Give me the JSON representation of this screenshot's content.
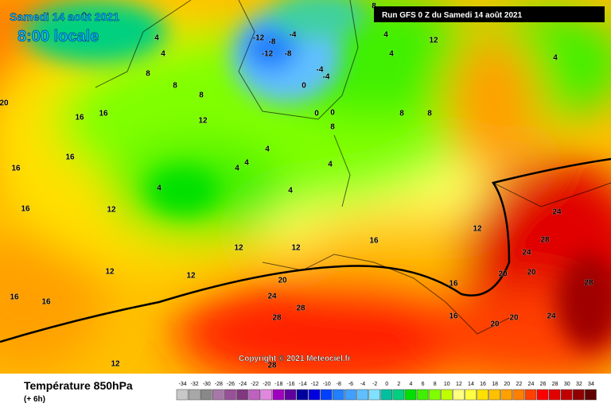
{
  "header": {
    "date": "Samedi 14 août 2021",
    "time": "8:00 locale",
    "run": "Run GFS 0 Z du Samedi 14 août 2021"
  },
  "copyright": "Copyright © 2021 Meteociel.fr",
  "footer": {
    "title": "Température 850hPa",
    "step": "(+ 6h)"
  },
  "legend": {
    "ticks": [
      -34,
      -32,
      -30,
      -28,
      -26,
      -24,
      -22,
      -20,
      -18,
      -16,
      -14,
      -12,
      -10,
      -8,
      -6,
      -4,
      -2,
      0,
      2,
      4,
      6,
      8,
      10,
      12,
      14,
      16,
      18,
      20,
      22,
      24,
      26,
      28,
      30,
      32,
      34
    ],
    "colors": [
      "#c8c8c8",
      "#a8a8a8",
      "#888888",
      "#a878a8",
      "#985098",
      "#803880",
      "#c060c0",
      "#e088e0",
      "#a000c0",
      "#6000a0",
      "#0000a0",
      "#0000e0",
      "#0040ff",
      "#2080ff",
      "#40a0ff",
      "#60c0ff",
      "#80e0ff",
      "#00c0a0",
      "#00d080",
      "#00e000",
      "#40f000",
      "#80ff00",
      "#c0ff00",
      "#ffff80",
      "#ffff40",
      "#ffe000",
      "#ffc000",
      "#ffa000",
      "#ff8000",
      "#ff4000",
      "#ff0000",
      "#e00000",
      "#c00000",
      "#900000",
      "#600000"
    ]
  },
  "map_labels": [
    -12,
    -8,
    -12,
    -8,
    -4,
    -4,
    -4,
    0,
    0,
    0,
    4,
    4,
    4,
    4,
    4,
    4,
    4,
    4,
    4,
    4,
    4,
    8,
    8,
    8,
    8,
    8,
    8,
    8,
    12,
    12,
    12,
    12,
    12,
    12,
    12,
    12,
    16,
    16,
    16,
    16,
    16,
    16,
    16,
    16,
    16,
    16,
    20,
    20,
    20,
    20,
    20,
    20,
    24,
    24,
    24,
    24,
    28,
    28,
    28,
    28,
    28,
    12
  ]
}
